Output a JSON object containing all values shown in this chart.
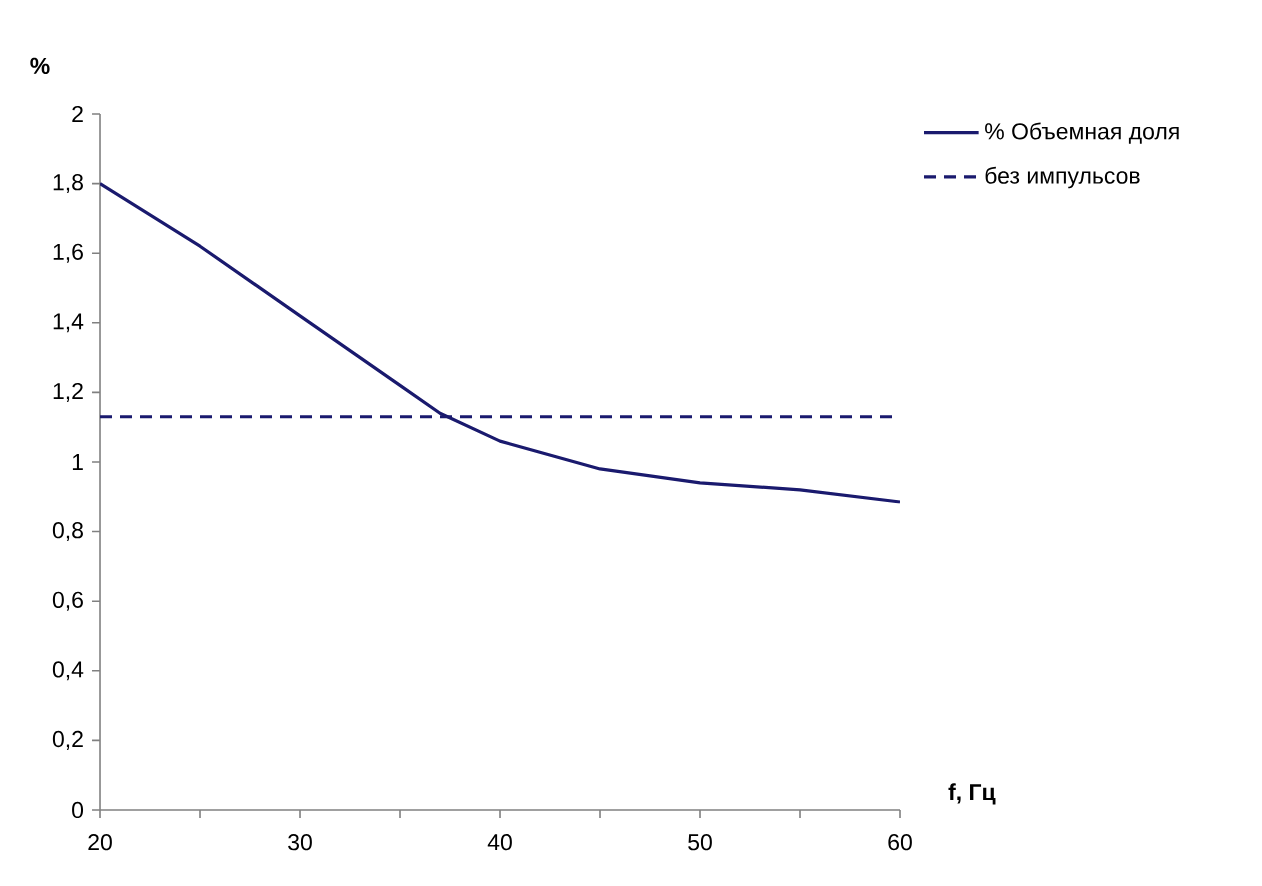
{
  "chart_data": {
    "type": "line",
    "xlabel": "f, Гц",
    "ylabel": "%",
    "xlim": [
      20,
      60
    ],
    "ylim": [
      0,
      2
    ],
    "xticks": [
      20,
      {
        "value": 25,
        "label": null
      },
      30,
      {
        "value": 35,
        "label": null
      },
      40,
      {
        "value": 45,
        "label": null
      },
      50,
      {
        "value": 55,
        "label": null
      },
      60
    ],
    "yticks": [
      0,
      {
        "value": 0.2,
        "label": "0,2"
      },
      {
        "value": 0.4,
        "label": "0,4"
      },
      {
        "value": 0.6,
        "label": "0,6"
      },
      {
        "value": 0.8,
        "label": "0,8"
      },
      1,
      {
        "value": 1.2,
        "label": "1,2"
      },
      {
        "value": 1.4,
        "label": "1,4"
      },
      {
        "value": 1.6,
        "label": "1,6"
      },
      {
        "value": 1.8,
        "label": "1,8"
      },
      2
    ],
    "legend": "top right",
    "grid": false,
    "marker": "none",
    "series": [
      {
        "name": "% Объемная доля",
        "color": "#1a1a6e",
        "line_style": "solid",
        "x": [
          20,
          25,
          30,
          35,
          37,
          40,
          45,
          50,
          55,
          60
        ],
        "values": [
          1.8,
          1.62,
          1.42,
          1.22,
          1.14,
          1.06,
          0.98,
          0.94,
          0.92,
          0.885
        ]
      },
      {
        "name": "без импульсов",
        "color": "#1a1a6e",
        "line_style": "dashed",
        "x": [
          20,
          60
        ],
        "values": [
          1.13,
          1.13
        ]
      }
    ]
  }
}
